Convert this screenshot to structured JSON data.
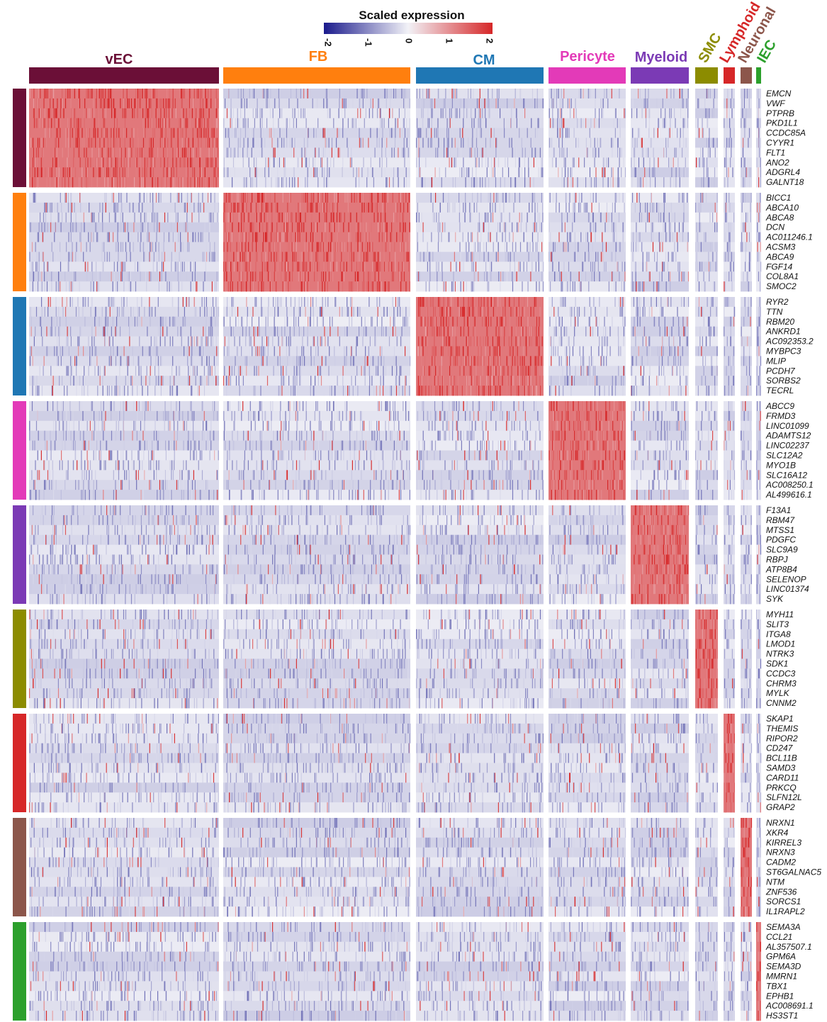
{
  "colorbar": {
    "title": "Scaled expression",
    "ticks": [
      "-2",
      "-1",
      "0",
      "1",
      "2"
    ],
    "colors": {
      "low": "#1a1a8c",
      "mid": "#f2f2f7",
      "high": "#d62728"
    },
    "range": [
      -2,
      2
    ]
  },
  "chart_data": {
    "type": "heatmap",
    "title": "",
    "xlabel": "",
    "ylabel": "",
    "color_scale": {
      "label": "Scaled expression",
      "min": -2,
      "max": 2
    },
    "clusters": [
      {
        "name": "vEC",
        "color": "#6b0f37"
      },
      {
        "name": "FB",
        "color": "#ff7f0e"
      },
      {
        "name": "CM",
        "color": "#1f77b4"
      },
      {
        "name": "Pericyte",
        "color": "#e33ab8"
      },
      {
        "name": "Myeloid",
        "color": "#7b3ab5"
      },
      {
        "name": "SMC",
        "color": "#8c8c00"
      },
      {
        "name": "Lymphoid",
        "color": "#d62728"
      },
      {
        "name": "Neuronal",
        "color": "#8c564b"
      },
      {
        "name": "IEC",
        "color": "#2ca02c"
      }
    ],
    "gene_blocks": [
      {
        "cluster": "vEC",
        "genes": [
          "EMCN",
          "VWF",
          "PTPRB",
          "PKD1L1",
          "CCDC85A",
          "CYYR1",
          "FLT1",
          "ANO2",
          "ADGRL4",
          "GALNT18"
        ]
      },
      {
        "cluster": "FB",
        "genes": [
          "BICC1",
          "ABCA10",
          "ABCA8",
          "DCN",
          "AC011246.1",
          "ACSM3",
          "ABCA9",
          "FGF14",
          "COL8A1",
          "SMOC2"
        ]
      },
      {
        "cluster": "CM",
        "genes": [
          "RYR2",
          "TTN",
          "RBM20",
          "ANKRD1",
          "AC092353.2",
          "MYBPC3",
          "MLIP",
          "PCDH7",
          "SORBS2",
          "TECRL"
        ]
      },
      {
        "cluster": "Pericyte",
        "genes": [
          "ABCC9",
          "FRMD3",
          "LINC01099",
          "ADAMTS12",
          "LINC02237",
          "SLC12A2",
          "MYO1B",
          "SLC16A12",
          "AC008250.1",
          "AL499616.1"
        ]
      },
      {
        "cluster": "Myeloid",
        "genes": [
          "F13A1",
          "RBM47",
          "MTSS1",
          "PDGFC",
          "SLC9A9",
          "RBPJ",
          "ATP8B4",
          "SELENOP",
          "LINC01374",
          "SYK"
        ]
      },
      {
        "cluster": "SMC",
        "genes": [
          "MYH11",
          "SLIT3",
          "ITGA8",
          "LMOD1",
          "NTRK3",
          "SDK1",
          "CCDC3",
          "CHRM3",
          "MYLK",
          "CNNM2"
        ]
      },
      {
        "cluster": "Lymphoid",
        "genes": [
          "SKAP1",
          "THEMIS",
          "RIPOR2",
          "CD247",
          "BCL11B",
          "SAMD3",
          "CARD11",
          "PRKCQ",
          "SLFN12L",
          "GRAP2"
        ]
      },
      {
        "cluster": "Neuronal",
        "genes": [
          "NRXN1",
          "XKR4",
          "KIRREL3",
          "NRXN3",
          "CADM2",
          "ST6GALNAC5",
          "NTM",
          "ZNF536",
          "SORCS1",
          "IL1RAPL2"
        ]
      },
      {
        "cluster": "IEC",
        "genes": [
          "SEMA3A",
          "CCL21",
          "AL357507.1",
          "GPM6A",
          "SEMA3D",
          "MMRN1",
          "TBX1",
          "EPHB1",
          "AC008691.1",
          "HS3ST1"
        ]
      }
    ]
  }
}
